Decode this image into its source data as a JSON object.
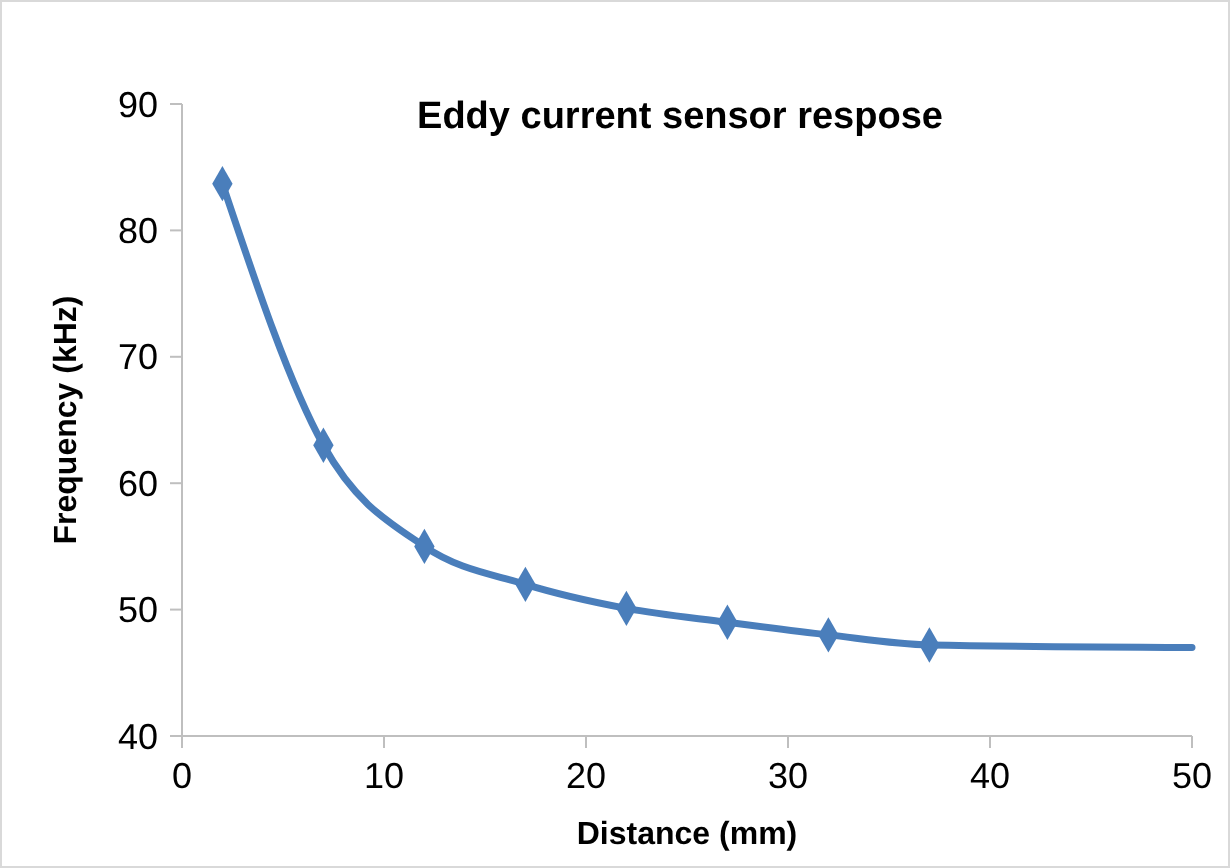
{
  "chart_data": {
    "type": "line",
    "title": "Eddy current sensor respose",
    "xlabel": "Distance (mm)",
    "ylabel": "Frequency (kHz)",
    "xlim": [
      0,
      50
    ],
    "xticks": [
      0,
      10,
      20,
      30,
      40,
      50
    ],
    "ylim": [
      40,
      90
    ],
    "yticks": [
      40,
      50,
      60,
      70,
      80,
      90
    ],
    "grid": false,
    "series": [
      {
        "color": "#4a7ebb",
        "marker": "none",
        "x": [
          2,
          7,
          12,
          17,
          22,
          27,
          32,
          37,
          50
        ],
        "values": [
          83.7,
          63,
          55,
          52,
          50.1,
          49,
          48,
          47.2,
          47
        ]
      },
      {
        "type": "scatter",
        "color": "#4a7ebb",
        "marker": "diamond",
        "x": [
          2,
          7,
          12,
          17,
          22,
          27,
          32,
          37
        ],
        "values": [
          83.7,
          63,
          55,
          52,
          50.1,
          49,
          48,
          47.2
        ]
      }
    ]
  }
}
